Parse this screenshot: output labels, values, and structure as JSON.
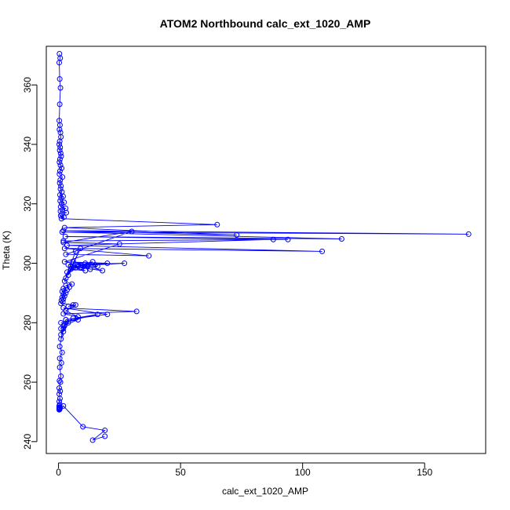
{
  "chart_data": {
    "type": "line",
    "title": "ATOM2 Northbound calc_ext_1020_AMP",
    "xlabel": "calc_ext_1020_AMP",
    "ylabel": "Theta (K)",
    "xlim": [
      -5,
      175
    ],
    "ylim": [
      236,
      373
    ],
    "x_ticks": [
      0,
      50,
      100,
      150
    ],
    "y_ticks": [
      240,
      260,
      280,
      300,
      320,
      340,
      360
    ],
    "grid": false,
    "series_color": "#0000ff",
    "series": [
      {
        "name": "calc_ext_1020_AMP",
        "x": [
          0.4,
          0.7,
          0.3,
          0.5,
          0.8,
          0.5,
          0.3,
          0.6,
          0.4,
          0.8,
          1.0,
          0.5,
          0.3,
          0.7,
          0.5,
          0.9,
          1.1,
          0.6,
          0.4,
          0.8,
          1.3,
          0.6,
          0.4,
          1.6,
          0.7,
          0.5,
          1.0,
          0.8,
          1.4,
          0.6,
          1.9,
          1.1,
          0.7,
          2.3,
          1.3,
          0.9,
          2.9,
          1.6,
          0.8,
          3.2,
          1.4,
          0.9,
          2.2,
          1.2,
          65,
          2.5,
          73,
          2.0,
          168,
          1.5,
          116,
          2.8,
          94,
          2.0,
          88,
          3.5,
          108,
          2.5,
          37,
          3.0,
          30,
          2.0,
          25,
          2.5,
          20,
          4.0,
          27,
          5.0,
          18,
          6.0,
          16,
          9.0,
          15,
          11.0,
          14,
          10.0,
          13,
          8.0,
          12,
          7.0,
          11,
          5.0,
          8,
          3.5,
          6,
          4.0,
          9,
          3.0,
          7,
          2.5,
          5.5,
          3.0,
          4.5,
          2.0,
          3.5,
          1.5,
          3.0,
          2.0,
          2.5,
          1.5,
          2.0,
          1.2,
          1.8,
          1.0,
          6,
          4,
          7,
          3,
          8,
          2,
          32,
          2,
          20,
          3,
          16,
          1,
          8,
          2,
          6,
          1,
          4,
          2,
          3,
          1,
          2.5,
          1,
          2,
          0.5,
          1.5,
          0.5,
          1.2,
          0.5,
          1.0,
          0.4,
          0.8,
          0.3,
          0.7,
          0.3,
          0.6,
          0.3,
          0.5,
          0.3,
          0.5,
          0.3,
          0.4,
          0.3,
          0.4,
          0.3,
          0.5,
          0.6,
          0.3,
          0.5,
          2,
          10,
          19,
          14,
          19
        ],
        "y": [
          370.5,
          369.0,
          367.5,
          362.0,
          359.0,
          353.5,
          348.0,
          346.5,
          345.0,
          344.0,
          342.5,
          341.0,
          340.0,
          339.0,
          338.0,
          337.0,
          336.0,
          335.0,
          334.0,
          333.0,
          332.0,
          331.0,
          330.0,
          329.0,
          328.0,
          327.0,
          326.0,
          325.0,
          324.0,
          323.0,
          322.5,
          322.0,
          321.0,
          320.5,
          320.0,
          319.0,
          318.5,
          318.0,
          317.5,
          317.0,
          316.5,
          316.0,
          315.5,
          315.0,
          313.0,
          312.0,
          309.5,
          311.0,
          309.8,
          310.5,
          308.2,
          309.0,
          308.0,
          307.5,
          308.0,
          306.0,
          304.0,
          305.0,
          302.5,
          303.0,
          310.7,
          307.0,
          306.5,
          300.5,
          300.0,
          299.5,
          300.0,
          299.0,
          297.5,
          300.5,
          299.0,
          298.5,
          299.5,
          300.0,
          300.5,
          299.0,
          298.0,
          299.5,
          299.0,
          298.5,
          297.5,
          298.0,
          299.0,
          297.0,
          298.5,
          296.0,
          305.0,
          295.0,
          304.0,
          294.0,
          293.0,
          292.5,
          292.0,
          291.5,
          291.0,
          290.5,
          290.0,
          289.5,
          289.0,
          288.5,
          288.0,
          287.5,
          287.0,
          286.5,
          286.0,
          285.5,
          286.0,
          284.0,
          282.0,
          283.0,
          283.8,
          285.0,
          282.8,
          281.0,
          282.8,
          280.0,
          281.0,
          279.0,
          281.5,
          278.0,
          280.0,
          277.0,
          281.0,
          276.0,
          279.0,
          274.5,
          278.0,
          272.0,
          270.0,
          268.0,
          266.5,
          265.0,
          262.0,
          260.5,
          260.0,
          258.0,
          257.0,
          256.0,
          254.5,
          253.5,
          252.5,
          252.0,
          251.5,
          251.0,
          250.8,
          251.5,
          252.0,
          251.2,
          250.9,
          251.3,
          250.7,
          251.0,
          252.0,
          245.0,
          243.8,
          240.5,
          241.8
        ]
      }
    ]
  }
}
